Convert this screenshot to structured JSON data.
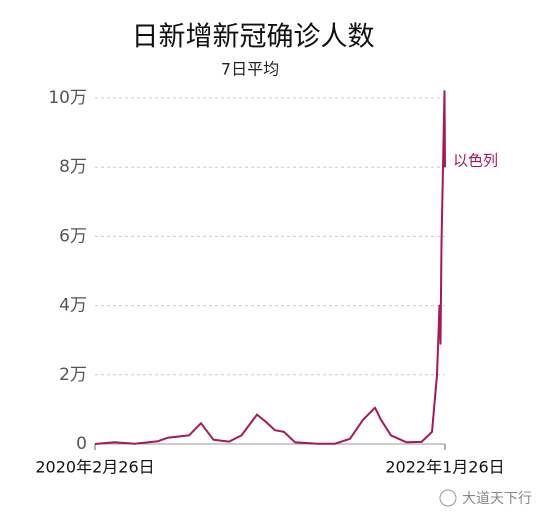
{
  "chart_data": {
    "type": "line",
    "title": "日新增新冠确诊人数",
    "subtitle": "7日平均",
    "x": [
      "2020-02-26",
      "2020-04-05",
      "2020-05-15",
      "2020-07-01",
      "2020-07-20",
      "2020-09-01",
      "2020-09-25",
      "2020-10-20",
      "2020-11-20",
      "2020-12-15",
      "2021-01-15",
      "2021-02-01",
      "2021-02-20",
      "2021-03-10",
      "2021-04-01",
      "2021-05-15",
      "2021-06-20",
      "2021-07-20",
      "2021-08-15",
      "2021-09-08",
      "2021-09-20",
      "2021-10-10",
      "2021-11-10",
      "2021-12-10",
      "2021-12-31",
      "2022-01-10",
      "2022-01-15",
      "2022-01-17",
      "2022-01-19",
      "2022-01-22",
      "2022-01-25",
      "2022-01-26"
    ],
    "series": [
      {
        "name": "以色列",
        "color": "#a3195b",
        "values": [
          0,
          500,
          100,
          800,
          1800,
          2500,
          6000,
          1200,
          700,
          2500,
          8500,
          6500,
          4000,
          3500,
          500,
          50,
          100,
          1500,
          7000,
          10500,
          7000,
          2500,
          500,
          600,
          3500,
          20000,
          40000,
          29000,
          58000,
          80000,
          102000,
          80000
        ]
      }
    ],
    "xlim": [
      "2020-02-26",
      "2022-01-26"
    ],
    "xticks": [
      {
        "value": "2020-02-26",
        "label": "2020年2月26日"
      },
      {
        "value": "2022-01-26",
        "label": "2022年1月26日"
      }
    ],
    "ylim": [
      0,
      100000
    ],
    "yticks": [
      0,
      {
        "value": 20000,
        "label": "2万"
      },
      {
        "value": 40000,
        "label": "4万"
      },
      {
        "value": 60000,
        "label": "6万"
      },
      {
        "value": 80000,
        "label": "8万"
      },
      {
        "value": 100000,
        "label": "10万"
      }
    ],
    "grid": true
  },
  "watermark": "大道天下行"
}
